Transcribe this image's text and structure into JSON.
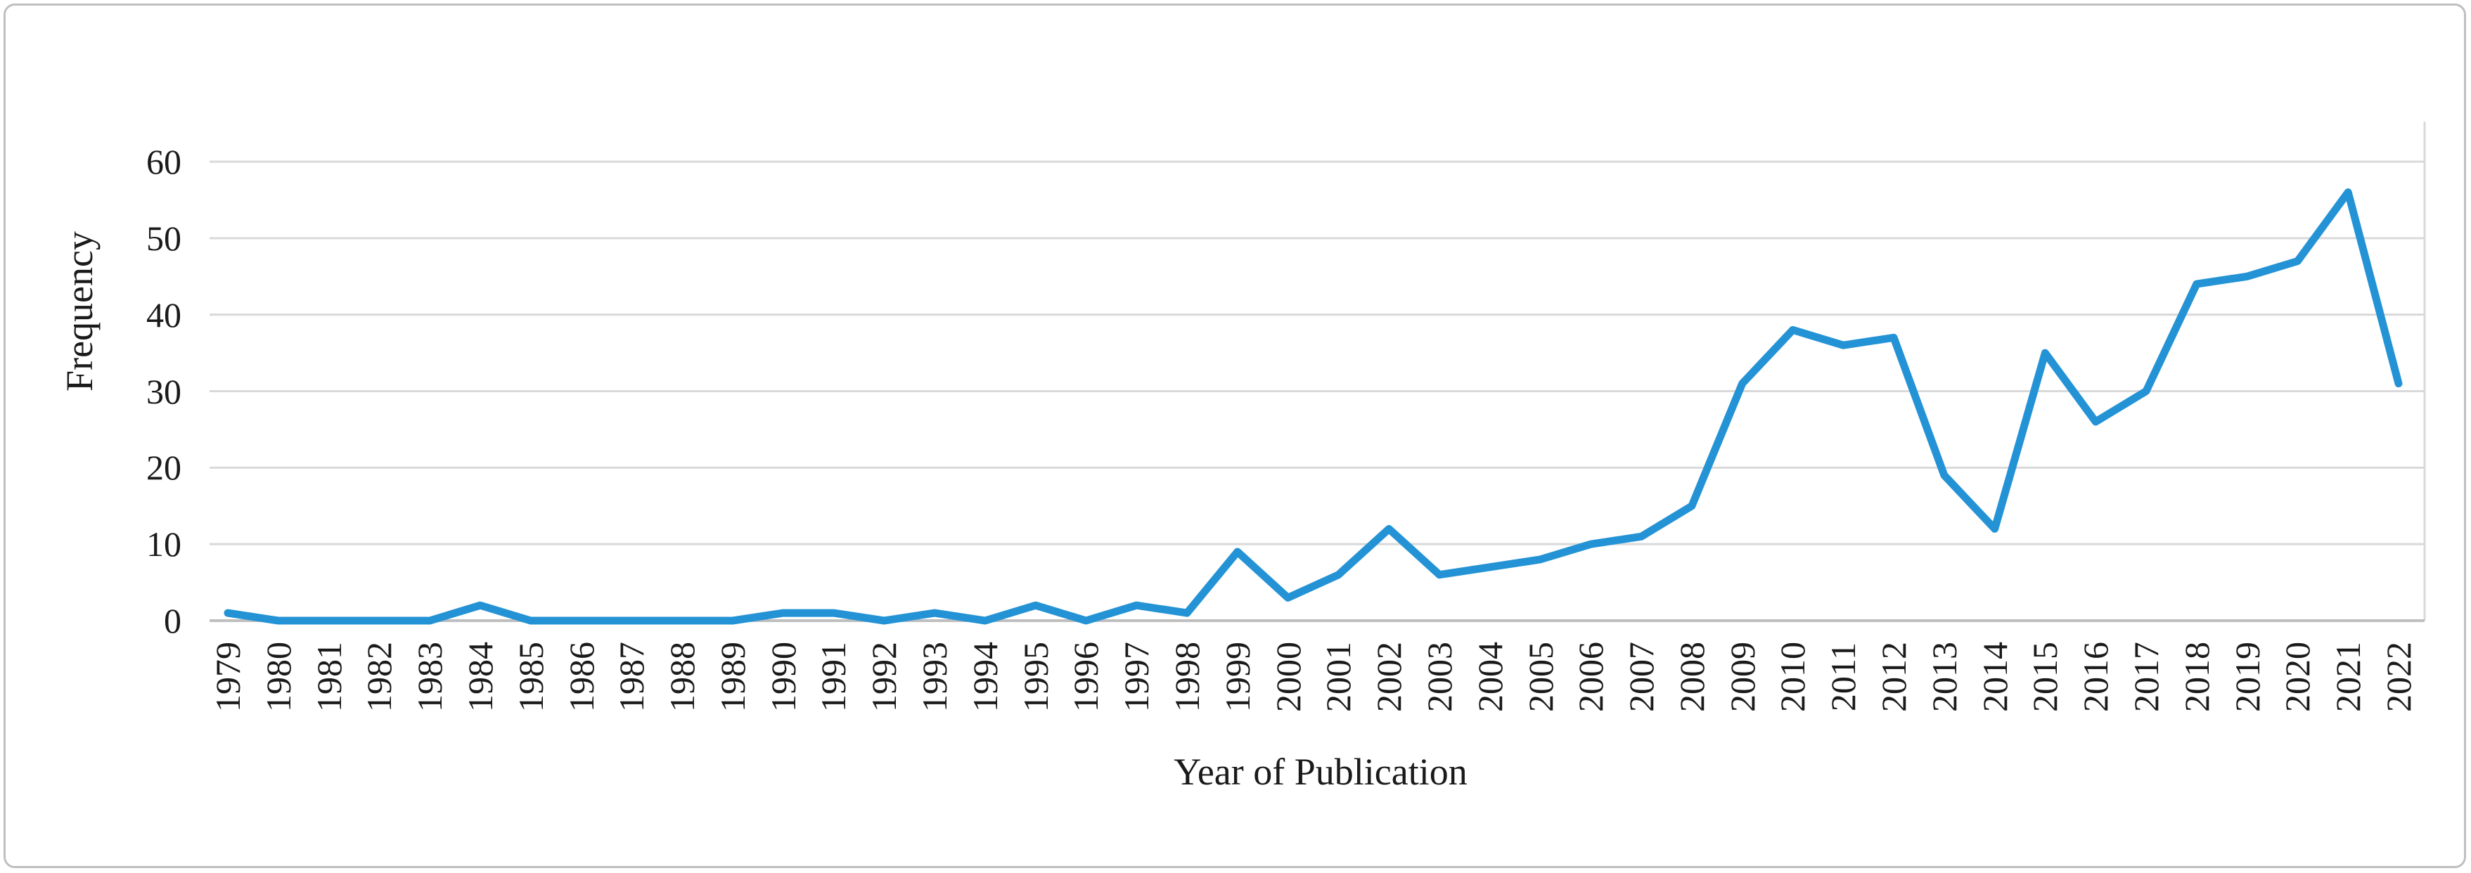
{
  "figure": {
    "background": "#FFFFFF",
    "border_color": "#BFBFBF"
  },
  "chart_data": {
    "type": "line",
    "title": "",
    "xlabel": "Year of Publication",
    "ylabel": "Frequency",
    "categories": [
      "1979",
      "1980",
      "1981",
      "1982",
      "1983",
      "1984",
      "1985",
      "1986",
      "1987",
      "1988",
      "1989",
      "1990",
      "1991",
      "1992",
      "1993",
      "1994",
      "1995",
      "1996",
      "1997",
      "1998",
      "1999",
      "2000",
      "2001",
      "2002",
      "2003",
      "2004",
      "2005",
      "2006",
      "2007",
      "2008",
      "2009",
      "2010",
      "2011",
      "2012",
      "2013",
      "2014",
      "2015",
      "2016",
      "2017",
      "2018",
      "2019",
      "2020",
      "2021",
      "2022"
    ],
    "series": [
      {
        "name": "Frequency",
        "values": [
          1,
          0,
          0,
          0,
          0,
          2,
          0,
          0,
          0,
          0,
          0,
          1,
          1,
          0,
          1,
          0,
          2,
          0,
          2,
          1,
          9,
          3,
          6,
          12,
          6,
          7,
          8,
          10,
          11,
          15,
          31,
          38,
          36,
          37,
          19,
          12,
          35,
          26,
          30,
          44,
          45,
          47,
          56,
          31
        ]
      }
    ],
    "ylim": [
      0,
      60
    ],
    "yticks": [
      0,
      10,
      20,
      30,
      40,
      50,
      60
    ],
    "grid": "horizontal",
    "legend": "none",
    "line_color": "#2493D6",
    "gridline_color": "#D9D9D9",
    "axis_line_color": "#BFBFBF",
    "text_color": "#1A1A1A"
  }
}
